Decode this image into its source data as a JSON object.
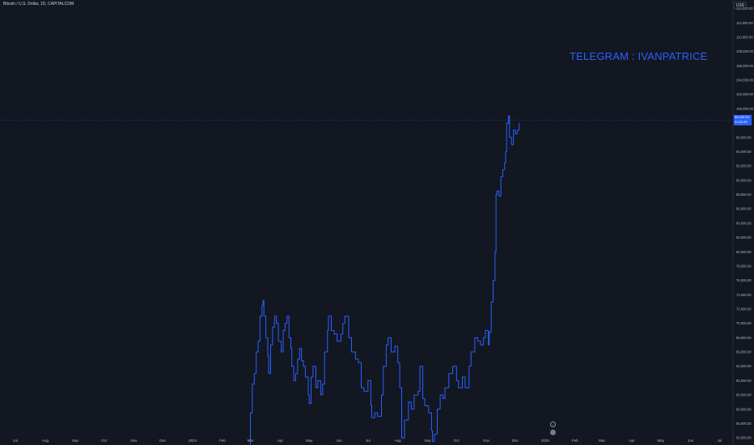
{
  "header": {
    "symbol": "Bitcoin / U.S. Dollar, 1D, CAPITALCOM"
  },
  "toolbar": {
    "currency_label": "USD"
  },
  "watermark_text": "TELEGRAM : IVANPATRICE",
  "price_tag": {
    "price": "98,425.50",
    "countdown": "21:52:43"
  },
  "colors": {
    "background": "#131722",
    "line": "#2962ff",
    "axis_text": "#b2b5be",
    "price_line": "#2962ff"
  },
  "chart_data": {
    "type": "line",
    "line_style": "step",
    "title": "Bitcoin / U.S. Dollar, 1D, CAPITALCOM",
    "xlabel": "",
    "ylabel": "",
    "ylim": [
      53000,
      115200
    ],
    "x_range": [
      "2023-06-15",
      "2025-07-15"
    ],
    "grid": false,
    "y_ticks": [
      "54,000.00",
      "56,000.00",
      "58,000.00",
      "60,000.00",
      "62,000.00",
      "64,000.00",
      "66,000.00",
      "68,000.00",
      "70,000.00",
      "72,000.00",
      "74,000.00",
      "76,000.00",
      "78,000.00",
      "80,000.00",
      "82,000.00",
      "84,000.00",
      "86,000.00",
      "88,000.00",
      "90,000.00",
      "92,000.00",
      "94,000.00",
      "96,000.00",
      "98,000.00",
      "100,000.00",
      "102,000.00",
      "104,000.00",
      "106,000.00",
      "108,000.00",
      "110,000.00",
      "112,000.00",
      "114,000.00"
    ],
    "x_ticks": [
      {
        "label": "Jul",
        "date": "2023-07-01"
      },
      {
        "label": "Aug",
        "date": "2023-08-01"
      },
      {
        "label": "Sep",
        "date": "2023-09-01"
      },
      {
        "label": "Oct",
        "date": "2023-10-01"
      },
      {
        "label": "Nov",
        "date": "2023-11-01"
      },
      {
        "label": "Dec",
        "date": "2023-12-01"
      },
      {
        "label": "2024",
        "date": "2024-01-01"
      },
      {
        "label": "Feb",
        "date": "2024-02-01"
      },
      {
        "label": "Mar",
        "date": "2024-03-01"
      },
      {
        "label": "Apr",
        "date": "2024-04-01"
      },
      {
        "label": "May",
        "date": "2024-05-01"
      },
      {
        "label": "Jun",
        "date": "2024-06-01"
      },
      {
        "label": "Jul",
        "date": "2024-07-01"
      },
      {
        "label": "Aug",
        "date": "2024-08-01"
      },
      {
        "label": "Sep",
        "date": "2024-09-01"
      },
      {
        "label": "Oct",
        "date": "2024-10-01"
      },
      {
        "label": "Nov",
        "date": "2024-11-01"
      },
      {
        "label": "Dec",
        "date": "2024-12-01"
      },
      {
        "label": "2025",
        "date": "2025-01-01"
      },
      {
        "label": "Feb",
        "date": "2025-02-01"
      },
      {
        "label": "Mar",
        "date": "2025-03-01"
      },
      {
        "label": "Apr",
        "date": "2025-04-01"
      },
      {
        "label": "May",
        "date": "2025-05-01"
      },
      {
        "label": "Jun",
        "date": "2025-06-01"
      },
      {
        "label": "Jul",
        "date": "2025-07-01"
      }
    ],
    "last_price": 98425.5,
    "series": [
      {
        "x": [
          "2024-02-28",
          "2024-03-01",
          "2024-03-03",
          "2024-03-05",
          "2024-03-07",
          "2024-03-09",
          "2024-03-11",
          "2024-03-13",
          "2024-03-14",
          "2024-03-15",
          "2024-03-17",
          "2024-03-19",
          "2024-03-20",
          "2024-03-22",
          "2024-03-24",
          "2024-03-26",
          "2024-03-28",
          "2024-03-30",
          "2024-04-02",
          "2024-04-04",
          "2024-04-06",
          "2024-04-08",
          "2024-04-10",
          "2024-04-12",
          "2024-04-13",
          "2024-04-15",
          "2024-04-17",
          "2024-04-19",
          "2024-04-21",
          "2024-04-23",
          "2024-04-25",
          "2024-04-27",
          "2024-04-30",
          "2024-05-01",
          "2024-05-03",
          "2024-05-05",
          "2024-05-08",
          "2024-05-10",
          "2024-05-13",
          "2024-05-15",
          "2024-05-17",
          "2024-05-20",
          "2024-05-21",
          "2024-05-24",
          "2024-05-27",
          "2024-05-30",
          "2024-06-03",
          "2024-06-05",
          "2024-06-07",
          "2024-06-11",
          "2024-06-14",
          "2024-06-18",
          "2024-06-21",
          "2024-06-24",
          "2024-06-27",
          "2024-07-01",
          "2024-07-04",
          "2024-07-05",
          "2024-07-08",
          "2024-07-11",
          "2024-07-15",
          "2024-07-17",
          "2024-07-20",
          "2024-07-22",
          "2024-07-25",
          "2024-07-29",
          "2024-08-01",
          "2024-08-03",
          "2024-08-05",
          "2024-08-08",
          "2024-08-12",
          "2024-08-15",
          "2024-08-18",
          "2024-08-22",
          "2024-08-24",
          "2024-08-27",
          "2024-08-29",
          "2024-09-02",
          "2024-09-05",
          "2024-09-06",
          "2024-09-08",
          "2024-09-11",
          "2024-09-14",
          "2024-09-17",
          "2024-09-19",
          "2024-09-23",
          "2024-09-27",
          "2024-10-01",
          "2024-10-03",
          "2024-10-07",
          "2024-10-10",
          "2024-10-14",
          "2024-10-16",
          "2024-10-20",
          "2024-10-23",
          "2024-10-26",
          "2024-10-29",
          "2024-10-31",
          "2024-11-03",
          "2024-11-04",
          "2024-11-06",
          "2024-11-08",
          "2024-11-10",
          "2024-11-11",
          "2024-11-12",
          "2024-11-14",
          "2024-11-16",
          "2024-11-18",
          "2024-11-20",
          "2024-11-21",
          "2024-11-22",
          "2024-11-24",
          "2024-11-25",
          "2024-11-27",
          "2024-11-29",
          "2024-12-01",
          "2024-12-03",
          "2024-12-05"
        ],
        "y": [
          51000,
          57500,
          61500,
          63000,
          66000,
          67500,
          71000,
          72500,
          73200,
          71000,
          68000,
          65500,
          63000,
          67000,
          69500,
          71000,
          70000,
          67500,
          66000,
          69000,
          70000,
          71000,
          68000,
          66500,
          64000,
          62000,
          63000,
          65000,
          66500,
          64800,
          64000,
          62500,
          60000,
          58800,
          62500,
          64000,
          61000,
          62000,
          60000,
          61500,
          66000,
          69000,
          71000,
          69000,
          68500,
          67500,
          68500,
          70000,
          71000,
          68000,
          66000,
          65000,
          64500,
          61000,
          60500,
          62000,
          58500,
          56800,
          57500,
          57000,
          60000,
          64000,
          67000,
          68000,
          66000,
          66800,
          64500,
          61000,
          54000,
          56500,
          59000,
          58000,
          60000,
          60500,
          64000,
          59500,
          58500,
          57500,
          55000,
          53500,
          54500,
          58000,
          60000,
          59500,
          61000,
          63000,
          64000,
          62000,
          61000,
          62500,
          61000,
          64000,
          66000,
          68000,
          67500,
          67000,
          68000,
          69000,
          67000,
          68800,
          73000,
          76000,
          80000,
          88000,
          88500,
          87800,
          90500,
          91500,
          92500,
          94000,
          98000,
          99000,
          96000,
          95000,
          97000,
          96500,
          97000,
          98000
        ]
      }
    ]
  }
}
